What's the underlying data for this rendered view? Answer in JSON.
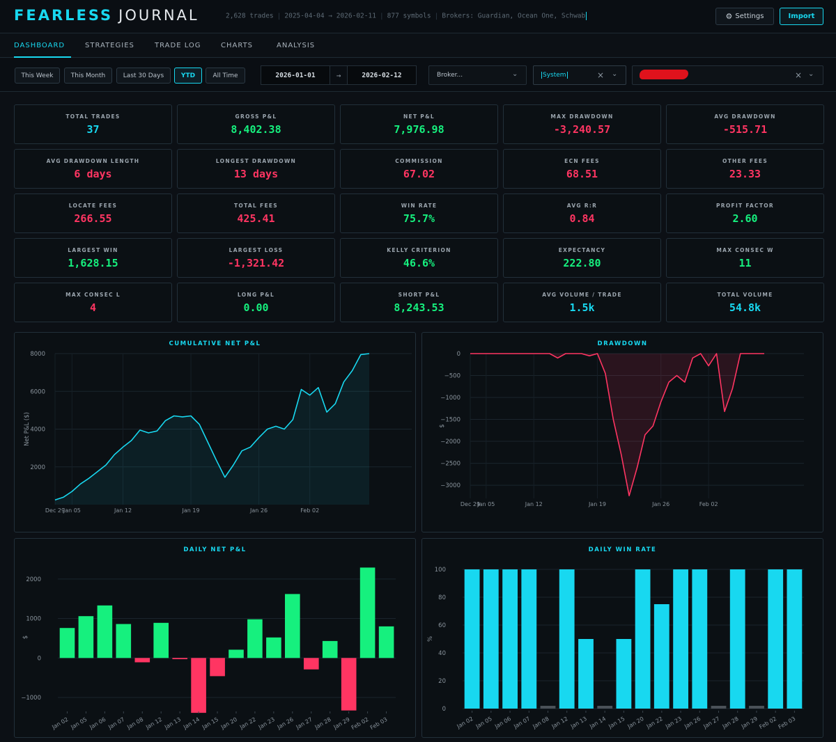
{
  "app": {
    "logo_a": "FEARLESS",
    "logo_b": "JOURNAL"
  },
  "header": {
    "trades": "2,628 trades",
    "range": "2025-04-04 → 2026-02-11",
    "symbols": "877 symbols",
    "brokers": "Brokers: Guardian, Ocean One, Schwab",
    "settings_label": "Settings",
    "settings_icon": "gear-icon",
    "import_label": "Import"
  },
  "nav": {
    "tabs": [
      "DASHBOARD",
      "STRATEGIES",
      "TRADE LOG",
      "CHARTS",
      "ANALYSIS"
    ],
    "active": "DASHBOARD"
  },
  "filters": {
    "ranges": [
      "This Week",
      "This Month",
      "Last 30 Days",
      "YTD",
      "All Time"
    ],
    "active_range": "YTD",
    "date_from": "2026-01-01",
    "date_arrow": "→",
    "date_to": "2026-02-12",
    "broker_placeholder": "Broker...",
    "system_value": "System"
  },
  "colors": {
    "accent": "#18d8f0",
    "positive": "#16f07e",
    "negative": "#ff3562",
    "muted": "#4a5158"
  },
  "metrics": [
    {
      "label": "TOTAL TRADES",
      "value": "37",
      "tone": "neu"
    },
    {
      "label": "GROSS P&L",
      "value": "8,402.38",
      "tone": "pos"
    },
    {
      "label": "NET P&L",
      "value": "7,976.98",
      "tone": "pos"
    },
    {
      "label": "MAX DRAWDOWN",
      "value": "-3,240.57",
      "tone": "neg"
    },
    {
      "label": "AVG DRAWDOWN",
      "value": "-515.71",
      "tone": "neg"
    },
    {
      "label": "AVG DRAWDOWN LENGTH",
      "value": "6 days",
      "tone": "neg"
    },
    {
      "label": "LONGEST DRAWDOWN",
      "value": "13 days",
      "tone": "neg"
    },
    {
      "label": "COMMISSION",
      "value": "67.02",
      "tone": "neg"
    },
    {
      "label": "ECN FEES",
      "value": "68.51",
      "tone": "neg"
    },
    {
      "label": "OTHER FEES",
      "value": "23.33",
      "tone": "neg"
    },
    {
      "label": "LOCATE FEES",
      "value": "266.55",
      "tone": "neg"
    },
    {
      "label": "TOTAL FEES",
      "value": "425.41",
      "tone": "neg"
    },
    {
      "label": "WIN RATE",
      "value": "75.7%",
      "tone": "pos"
    },
    {
      "label": "AVG R:R",
      "value": "0.84",
      "tone": "neg"
    },
    {
      "label": "PROFIT FACTOR",
      "value": "2.60",
      "tone": "pos"
    },
    {
      "label": "LARGEST WIN",
      "value": "1,628.15",
      "tone": "pos"
    },
    {
      "label": "LARGEST LOSS",
      "value": "-1,321.42",
      "tone": "neg"
    },
    {
      "label": "KELLY CRITERION",
      "value": "46.6%",
      "tone": "pos"
    },
    {
      "label": "EXPECTANCY",
      "value": "222.80",
      "tone": "pos"
    },
    {
      "label": "MAX CONSEC W",
      "value": "11",
      "tone": "pos"
    },
    {
      "label": "MAX CONSEC L",
      "value": "4",
      "tone": "neg"
    },
    {
      "label": "LONG P&L",
      "value": "0.00",
      "tone": "pos"
    },
    {
      "label": "SHORT P&L",
      "value": "8,243.53",
      "tone": "pos"
    },
    {
      "label": "AVG VOLUME / TRADE",
      "value": "1.5k",
      "tone": "neu"
    },
    {
      "label": "TOTAL VOLUME",
      "value": "54.8k",
      "tone": "neu"
    }
  ],
  "chart_data": [
    {
      "id": "cumulative",
      "type": "area",
      "title": "CUMULATIVE NET P&L",
      "ylabel": "Net P&L ($)",
      "xlabel": "",
      "ylim": [
        0,
        8000
      ],
      "yticks": [
        2000,
        4000,
        6000,
        8000
      ],
      "xlim": [
        0,
        42
      ],
      "xticks": [
        {
          "x": 0,
          "label": "Dec 29"
        },
        {
          "x": 2,
          "label": "Jan 05"
        },
        {
          "x": 8,
          "label": "Jan 12"
        },
        {
          "x": 16,
          "label": "Jan 19"
        },
        {
          "x": 24,
          "label": "Jan 26"
        },
        {
          "x": 30,
          "label": "Feb 02"
        }
      ],
      "x": [
        0,
        1,
        2,
        3,
        4,
        5,
        6,
        7,
        8,
        9,
        10,
        11,
        12,
        13,
        14,
        15,
        16,
        17,
        18,
        19,
        20,
        21,
        22,
        23,
        24,
        25,
        26,
        27,
        28,
        29,
        30,
        31,
        32,
        33,
        34,
        35,
        36,
        37
      ],
      "values": [
        250,
        400,
        700,
        1100,
        1400,
        1750,
        2100,
        2650,
        3050,
        3400,
        3950,
        3800,
        3900,
        4450,
        4700,
        4650,
        4700,
        4250,
        3300,
        2350,
        1450,
        2100,
        2850,
        3050,
        3550,
        4000,
        4150,
        4000,
        4500,
        6100,
        5800,
        6200,
        4900,
        5350,
        6500,
        7100,
        7950,
        8000
      ]
    },
    {
      "id": "drawdown",
      "type": "area",
      "title": "DRAWDOWN",
      "ylabel": "$",
      "xlabel": "",
      "ylim": [
        -3300,
        0
      ],
      "yticks": [
        0,
        -500,
        -1000,
        -1500,
        -2000,
        -2500,
        -3000
      ],
      "xlim": [
        0,
        42
      ],
      "xticks": [
        {
          "x": 0,
          "label": "Dec 29"
        },
        {
          "x": 2,
          "label": "Jan 05"
        },
        {
          "x": 8,
          "label": "Jan 12"
        },
        {
          "x": 16,
          "label": "Jan 19"
        },
        {
          "x": 24,
          "label": "Jan 26"
        },
        {
          "x": 30,
          "label": "Feb 02"
        }
      ],
      "x": [
        0,
        1,
        2,
        3,
        4,
        5,
        6,
        7,
        8,
        9,
        10,
        11,
        12,
        13,
        14,
        15,
        16,
        17,
        18,
        19,
        20,
        21,
        22,
        23,
        24,
        25,
        26,
        27,
        28,
        29,
        30,
        31,
        32,
        33,
        34,
        35,
        36,
        37
      ],
      "values": [
        0,
        0,
        0,
        0,
        0,
        0,
        0,
        0,
        0,
        0,
        0,
        -100,
        0,
        0,
        0,
        -50,
        0,
        -450,
        -1500,
        -2300,
        -3240,
        -2600,
        -1850,
        -1650,
        -1100,
        -650,
        -500,
        -650,
        -100,
        0,
        -280,
        0,
        -1320,
        -800,
        0,
        0,
        0,
        0
      ]
    },
    {
      "id": "daily-pnl",
      "type": "bar",
      "title": "DAILY NET P&L",
      "ylabel": "$",
      "xlabel": "",
      "ylim": [
        -1300,
        2350
      ],
      "yticks": [
        2000,
        1000,
        0,
        -1000
      ],
      "categories": [
        "Jan 02",
        "Jan 05",
        "Jan 06",
        "Jan 07",
        "Jan 08",
        "Jan 12",
        "Jan 13",
        "Jan 14",
        "Jan 15",
        "Jan 20",
        "Jan 22",
        "Jan 23",
        "Jan 26",
        "Jan 27",
        "Jan 28",
        "Jan 29",
        "Feb 02",
        "Feb 03"
      ],
      "values": [
        760,
        1060,
        1330,
        860,
        -110,
        890,
        -30,
        -1390,
        -460,
        210,
        980,
        520,
        1620,
        -290,
        430,
        -1330,
        2290,
        800
      ]
    },
    {
      "id": "daily-win-rate",
      "type": "bar",
      "title": "DAILY WIN RATE",
      "ylabel": "%",
      "xlabel": "",
      "ylim": [
        0,
        100
      ],
      "yticks": [
        100,
        80,
        60,
        40,
        20,
        0
      ],
      "categories": [
        "Jan 02",
        "Jan 05",
        "Jan 06",
        "Jan 07",
        "Jan 08",
        "Jan 12",
        "Jan 13",
        "Jan 14",
        "Jan 15",
        "Jan 20",
        "Jan 22",
        "Jan 23",
        "Jan 26",
        "Jan 27",
        "Jan 28",
        "Jan 29",
        "Feb 02",
        "Feb 03"
      ],
      "values": [
        100,
        100,
        100,
        100,
        0,
        100,
        50,
        0,
        50,
        100,
        75,
        100,
        100,
        0,
        100,
        0,
        100,
        100
      ]
    }
  ]
}
